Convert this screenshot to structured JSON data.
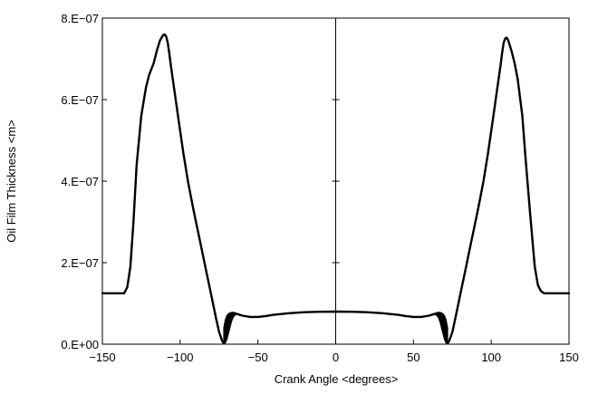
{
  "chart_data": {
    "type": "line",
    "title": "",
    "xlabel": "Crank Angle <degrees>",
    "ylabel": "Oil Film Thickness <m>",
    "xlim": [
      -150,
      150
    ],
    "ylim": [
      0,
      8e-07
    ],
    "x_ticks": [
      -150,
      -100,
      -50,
      0,
      50,
      100,
      150
    ],
    "x_tick_labels": [
      "−150",
      "−100",
      "−50",
      "0",
      "50",
      "100",
      "150"
    ],
    "y_ticks": [
      0,
      2e-07,
      4e-07,
      6e-07,
      8e-07
    ],
    "y_tick_labels": [
      "0.E+00",
      "2.E−07",
      "4.E−07",
      "6.E−07",
      "8.E−07"
    ],
    "grid": false,
    "legend": false,
    "reference_line_x": 0,
    "series": [
      {
        "color": "#000000",
        "x": [
          -150,
          -140,
          -136,
          -134,
          -132,
          -130,
          -128,
          -125,
          -122,
          -120,
          -117,
          -115,
          -113,
          -111,
          -110,
          -109,
          -108,
          -107,
          -106,
          -104,
          -101,
          -98,
          -95,
          -92,
          -89,
          -86,
          -83,
          -80,
          -77,
          -75,
          -73,
          -72,
          -71,
          -70,
          -69,
          -68,
          -67,
          -66,
          -65,
          -60,
          -55,
          -50,
          -45,
          -40,
          -30,
          -20,
          -10,
          0,
          10,
          20,
          30,
          40,
          45,
          50,
          55,
          60,
          65,
          66,
          67,
          68,
          69,
          70,
          71,
          72,
          73,
          75,
          77,
          80,
          83,
          86,
          89,
          92,
          95,
          98,
          101,
          104,
          106,
          107,
          108,
          109,
          110,
          111,
          113,
          115,
          117,
          120,
          122,
          125,
          128,
          130,
          132,
          134,
          136,
          140,
          150
        ],
        "y": [
          1.25e-07,
          1.25e-07,
          1.25e-07,
          1.4e-07,
          1.9e-07,
          3e-07,
          4.4e-07,
          5.6e-07,
          6.3e-07,
          6.6e-07,
          6.9e-07,
          7.2e-07,
          7.45e-07,
          7.58e-07,
          7.6e-07,
          7.55e-07,
          7.4e-07,
          7.15e-07,
          6.85e-07,
          6.3e-07,
          5.5e-07,
          4.7e-07,
          4e-07,
          3.4e-07,
          2.85e-07,
          2.3e-07,
          1.75e-07,
          1.2e-07,
          6.5e-08,
          3e-08,
          8e-09,
          2e-09,
          5e-09,
          3e-08,
          5.5e-08,
          7e-08,
          7.6e-08,
          7.7e-08,
          7.6e-08,
          7e-08,
          6.7e-08,
          6.7e-08,
          6.9e-08,
          7.2e-08,
          7.6e-08,
          7.85e-08,
          7.95e-08,
          8e-08,
          7.95e-08,
          7.85e-08,
          7.6e-08,
          7.2e-08,
          6.9e-08,
          6.7e-08,
          6.7e-08,
          7e-08,
          7.6e-08,
          7.7e-08,
          7.6e-08,
          7e-08,
          5.5e-08,
          3e-08,
          5e-09,
          2e-09,
          8e-09,
          3e-08,
          6.5e-08,
          1.2e-07,
          1.75e-07,
          2.3e-07,
          2.85e-07,
          3.4e-07,
          4e-07,
          4.7e-07,
          5.5e-07,
          6.3e-07,
          6.85e-07,
          7.15e-07,
          7.4e-07,
          7.5e-07,
          7.52e-07,
          7.45e-07,
          7.2e-07,
          6.9e-07,
          6.5e-07,
          5.6e-07,
          4.6e-07,
          3.2e-07,
          1.9e-07,
          1.45e-07,
          1.3e-07,
          1.25e-07,
          1.25e-07,
          1.25e-07,
          1.25e-07
        ]
      }
    ],
    "shaded_bands": [
      {
        "x": [
          -72,
          -71,
          -70,
          -69,
          -68,
          -67,
          -66,
          -65,
          -64
        ],
        "y_low": [
          2e-09,
          5e-09,
          1e-08,
          2.5e-08,
          4e-08,
          5.5e-08,
          6.5e-08,
          7e-08,
          7.3e-08
        ],
        "y_high": [
          4e-08,
          6e-08,
          7e-08,
          7.5e-08,
          7.7e-08,
          7.8e-08,
          7.8e-08,
          7.7e-08,
          7.6e-08
        ]
      },
      {
        "x": [
          64,
          65,
          66,
          67,
          68,
          69,
          70,
          71,
          72
        ],
        "y_low": [
          7.3e-08,
          7e-08,
          6.5e-08,
          5.5e-08,
          4e-08,
          2.5e-08,
          1e-08,
          5e-09,
          2e-09
        ],
        "y_high": [
          7.6e-08,
          7.7e-08,
          7.8e-08,
          7.8e-08,
          7.7e-08,
          7.5e-08,
          7e-08,
          6e-08,
          4e-08
        ]
      }
    ]
  }
}
